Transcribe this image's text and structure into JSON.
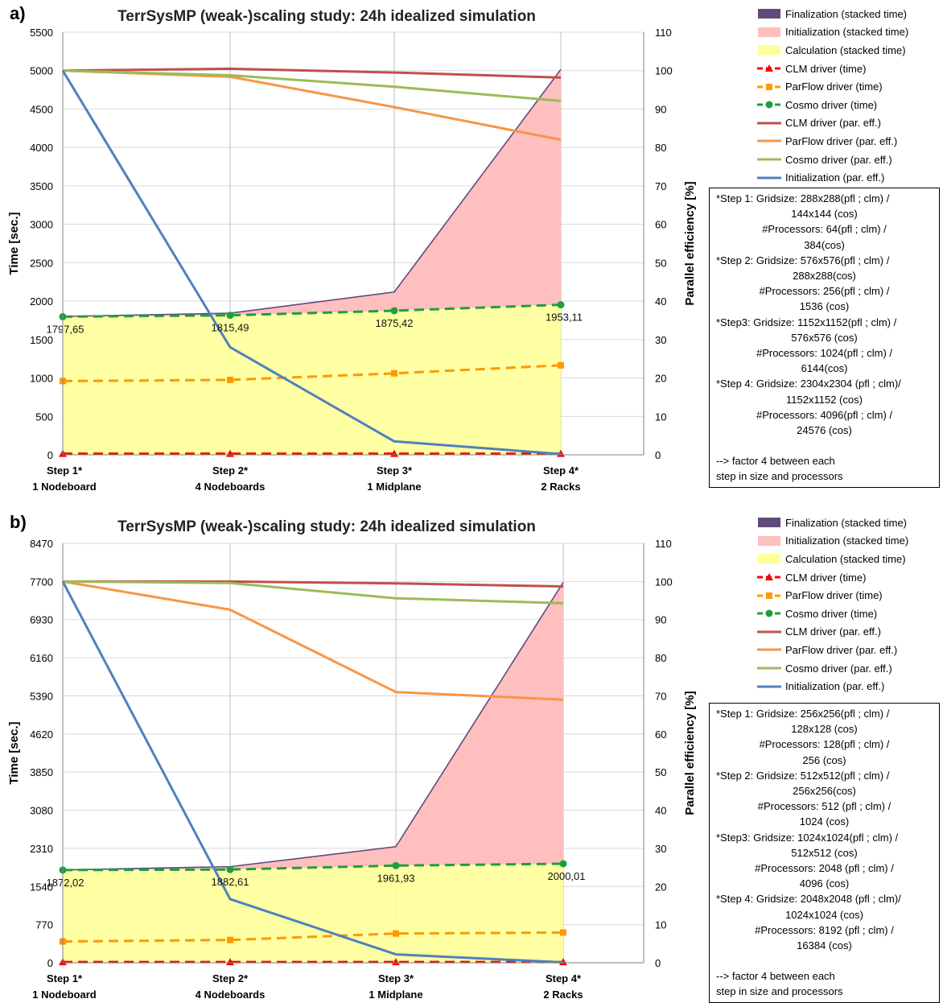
{
  "chart_data": [
    {
      "panel_label": "a)",
      "type": "line",
      "title": "TerrSysMP (weak-)scaling study: 24h idealized simulation",
      "ylabel": "Time [sec.]",
      "y2label": "Parallel efficiency [%]",
      "ylim": [
        0,
        5500
      ],
      "y2lim": [
        0,
        110
      ],
      "yticks": [
        "0",
        "500",
        "1000",
        "1500",
        "2000",
        "2500",
        "3000",
        "3500",
        "4000",
        "4500",
        "5000",
        "5500"
      ],
      "y2ticks": [
        "0",
        "10",
        "20",
        "30",
        "40",
        "50",
        "60",
        "70",
        "80",
        "90",
        "100",
        "110"
      ],
      "categories": [
        {
          "line1": "Step 1*",
          "line2": "1 Nodeboard"
        },
        {
          "line1": "Step 2*",
          "line2": "4 Nodeboards"
        },
        {
          "line1": "Step 3*",
          "line2": "1 Midplane"
        },
        {
          "line1": "Step 4*",
          "line2": "2 Racks"
        }
      ],
      "stacked": {
        "calculation": [
          1797.65,
          1815.49,
          1875.42,
          1953.11
        ],
        "initialization": [
          0,
          25,
          240,
          3060
        ],
        "finalization": [
          3,
          3,
          3,
          3
        ]
      },
      "series": [
        {
          "name": "CLM driver (time)",
          "axis": "left",
          "style": "dashed-triangle",
          "color": "#ff0000",
          "values": [
            15,
            15,
            15,
            15
          ]
        },
        {
          "name": "ParFlow driver (time)",
          "axis": "left",
          "style": "dashed-square",
          "color": "#ff9900",
          "values": [
            960,
            975,
            1060,
            1165
          ]
        },
        {
          "name": "Cosmo driver (time)",
          "axis": "left",
          "style": "dashed-circle",
          "color": "#1e9e3e",
          "values": [
            1797.65,
            1815.49,
            1875.42,
            1953.11
          ]
        },
        {
          "name": "CLM driver (par. eff.)",
          "axis": "right",
          "style": "solid",
          "color": "#c0504d",
          "values": [
            100,
            100.5,
            99.5,
            98.2
          ]
        },
        {
          "name": "ParFlow driver (par. eff.)",
          "axis": "right",
          "style": "solid",
          "color": "#f79646",
          "values": [
            100,
            98.4,
            90.5,
            82
          ]
        },
        {
          "name": "Cosmo driver (par. eff.)",
          "axis": "right",
          "style": "solid",
          "color": "#9bbb59",
          "values": [
            100,
            98.8,
            95.8,
            92.1
          ]
        },
        {
          "name": "Initialization (par. eff.)",
          "axis": "right",
          "style": "solid",
          "color": "#4f81bd",
          "values": [
            100,
            28,
            3.5,
            0.2
          ]
        }
      ],
      "data_labels": [
        "1797,65",
        "1815,49",
        "1875,42",
        "1953,11"
      ],
      "legend": [
        {
          "label": "Finalization (stacked time)",
          "kind": "area",
          "color": "#604a7b"
        },
        {
          "label": "Initialization (stacked time)",
          "kind": "area",
          "color": "#ffbfbf"
        },
        {
          "label": "Calculation (stacked time)",
          "kind": "area",
          "color": "#ffff99"
        },
        {
          "label": "CLM driver (time)",
          "kind": "dashed-triangle",
          "color": "#ff0000"
        },
        {
          "label": "ParFlow driver (time)",
          "kind": "dashed-square",
          "color": "#ff9900"
        },
        {
          "label": "Cosmo driver (time)",
          "kind": "dashed-circle",
          "color": "#1e9e3e"
        },
        {
          "label": "CLM driver (par. eff.)",
          "kind": "solid",
          "color": "#c0504d"
        },
        {
          "label": "ParFlow driver (par. eff.)",
          "kind": "solid",
          "color": "#f79646"
        },
        {
          "label": "Cosmo driver (par. eff.)",
          "kind": "solid",
          "color": "#9bbb59"
        },
        {
          "label": "Initialization (par. eff.)",
          "kind": "solid",
          "color": "#4f81bd"
        }
      ],
      "note": [
        {
          "text": "*Step 1: Gridsize: 288x288(pfl ; clm) /",
          "align": "left"
        },
        {
          "text": "144x144 (cos)",
          "align": "center"
        },
        {
          "text": "#Processors: 64(pfl ; clm) /",
          "align": "center"
        },
        {
          "text": "384(cos)",
          "align": "center"
        },
        {
          "text": "*Step 2: Gridsize: 576x576(pfl ; clm) /",
          "align": "left"
        },
        {
          "text": "288x288(cos)",
          "align": "center"
        },
        {
          "text": "#Processors: 256(pfl ; clm) /",
          "align": "center"
        },
        {
          "text": "1536 (cos)",
          "align": "center"
        },
        {
          "text": "*Step3:  Gridsize: 1152x1152(pfl ; clm) /",
          "align": "left"
        },
        {
          "text": "576x576 (cos)",
          "align": "center"
        },
        {
          "text": "#Processors: 1024(pfl ; clm) /",
          "align": "center"
        },
        {
          "text": "6144(cos)",
          "align": "center"
        },
        {
          "text": "*Step 4: Gridsize: 2304x2304 (pfl ; clm)/",
          "align": "left"
        },
        {
          "text": "1152x1152 (cos)",
          "align": "center"
        },
        {
          "text": "#Processors: 4096(pfl ; clm)  /",
          "align": "center"
        },
        {
          "text": "24576 (cos)",
          "align": "center"
        },
        {
          "text": "",
          "align": "gap"
        },
        {
          "text": "--> factor 4 between each",
          "align": "left"
        },
        {
          "text": "step in size and processors",
          "align": "left"
        }
      ]
    },
    {
      "panel_label": "b)",
      "type": "line",
      "title": "TerrSysMP (weak-)scaling study: 24h idealized simulation",
      "ylabel": "Time [sec.]",
      "y2label": "Parallel efficiency [%]",
      "ylim": [
        0,
        8470
      ],
      "y2lim": [
        0,
        110
      ],
      "yticks": [
        "0",
        "770",
        "1540",
        "2310",
        "3080",
        "3850",
        "4620",
        "5390",
        "6160",
        "6930",
        "7700",
        "8470"
      ],
      "y2ticks": [
        "0",
        "10",
        "20",
        "30",
        "40",
        "50",
        "60",
        "70",
        "80",
        "90",
        "100",
        "110"
      ],
      "categories": [
        {
          "line1": "Step 1*",
          "line2": "1 Nodeboard"
        },
        {
          "line1": "Step 2*",
          "line2": "4 Nodeboards"
        },
        {
          "line1": "Step 3*",
          "line2": "1 Midplane"
        },
        {
          "line1": "Step 4*",
          "line2": "2 Racks"
        }
      ],
      "stacked": {
        "calculation": [
          1872.02,
          1882.61,
          1961.93,
          2000.01
        ],
        "initialization": [
          0,
          55,
          380,
          5680
        ],
        "finalization": [
          3,
          3,
          3,
          3
        ]
      },
      "series": [
        {
          "name": "CLM driver (time)",
          "axis": "left",
          "style": "dashed-triangle",
          "color": "#ff0000",
          "values": [
            15,
            15,
            15,
            15
          ]
        },
        {
          "name": "ParFlow driver (time)",
          "axis": "left",
          "style": "dashed-square",
          "color": "#ff9900",
          "values": [
            430,
            460,
            590,
            610
          ]
        },
        {
          "name": "Cosmo driver (time)",
          "axis": "left",
          "style": "dashed-circle",
          "color": "#1e9e3e",
          "values": [
            1872.02,
            1882.61,
            1961.93,
            2000.01
          ]
        },
        {
          "name": "CLM driver (par. eff.)",
          "axis": "right",
          "style": "solid",
          "color": "#c0504d",
          "values": [
            100,
            100,
            99.5,
            98.7
          ]
        },
        {
          "name": "ParFlow driver (par. eff.)",
          "axis": "right",
          "style": "solid",
          "color": "#f79646",
          "values": [
            100,
            92.6,
            71,
            69
          ]
        },
        {
          "name": "Cosmo driver (par. eff.)",
          "axis": "right",
          "style": "solid",
          "color": "#9bbb59",
          "values": [
            100,
            99.6,
            95.6,
            94.3
          ]
        },
        {
          "name": "Initialization (par. eff.)",
          "axis": "right",
          "style": "solid",
          "color": "#4f81bd",
          "values": [
            100,
            16.7,
            2.2,
            0.1
          ]
        }
      ],
      "data_labels": [
        "1872,02",
        "1882,61",
        "1961,93",
        "2000,01"
      ],
      "legend": [
        {
          "label": "Finalization (stacked time)",
          "kind": "area",
          "color": "#604a7b"
        },
        {
          "label": "Initialization (stacked time)",
          "kind": "area",
          "color": "#ffbfbf"
        },
        {
          "label": "Calculation (stacked time)",
          "kind": "area",
          "color": "#ffff99"
        },
        {
          "label": "CLM driver (time)",
          "kind": "dashed-triangle",
          "color": "#ff0000"
        },
        {
          "label": "ParFlow driver (time)",
          "kind": "dashed-square",
          "color": "#ff9900"
        },
        {
          "label": "Cosmo driver (time)",
          "kind": "dashed-circle",
          "color": "#1e9e3e"
        },
        {
          "label": "CLM driver (par. eff.)",
          "kind": "solid",
          "color": "#c0504d"
        },
        {
          "label": "ParFlow driver (par. eff.)",
          "kind": "solid",
          "color": "#f79646"
        },
        {
          "label": "Cosmo driver (par. eff.)",
          "kind": "solid",
          "color": "#9bbb59"
        },
        {
          "label": "Initialization (par. eff.)",
          "kind": "solid",
          "color": "#4f81bd"
        }
      ],
      "note": [
        {
          "text": "*Step 1: Gridsize: 256x256(pfl ; clm) /",
          "align": "left"
        },
        {
          "text": "128x128 (cos)",
          "align": "center"
        },
        {
          "text": "#Processors: 128(pfl ; clm) /",
          "align": "center"
        },
        {
          "text": "256 (cos)",
          "align": "center"
        },
        {
          "text": "*Step 2: Gridsize: 512x512(pfl ; clm) /",
          "align": "left"
        },
        {
          "text": "256x256(cos)",
          "align": "center"
        },
        {
          "text": "#Processors: 512 (pfl ; clm) /",
          "align": "center"
        },
        {
          "text": "1024 (cos)",
          "align": "center"
        },
        {
          "text": "*Step3:  Gridsize: 1024x1024(pfl ; clm) /",
          "align": "left"
        },
        {
          "text": "512x512 (cos)",
          "align": "center"
        },
        {
          "text": "#Processors: 2048 (pfl ; clm) /",
          "align": "center"
        },
        {
          "text": "4096 (cos)",
          "align": "center"
        },
        {
          "text": "*Step 4: Gridsize: 2048x2048 (pfl ; clm)/",
          "align": "left"
        },
        {
          "text": "1024x1024 (cos)",
          "align": "center"
        },
        {
          "text": "#Processors: 8192 (pfl ; clm)  /",
          "align": "center"
        },
        {
          "text": "16384 (cos)",
          "align": "center"
        },
        {
          "text": "",
          "align": "gap"
        },
        {
          "text": "--> factor 4 between each",
          "align": "left"
        },
        {
          "text": "step in size and processors",
          "align": "left"
        }
      ]
    }
  ]
}
